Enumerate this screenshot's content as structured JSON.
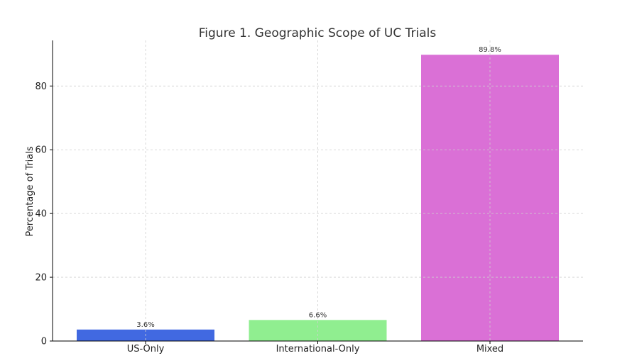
{
  "chart_data": {
    "type": "bar",
    "title": "Figure 1. Geographic Scope of UC Trials",
    "xlabel": "",
    "ylabel": "Percentage of Trials",
    "categories": [
      "US-Only",
      "International-Only",
      "Mixed"
    ],
    "values": [
      3.6,
      6.6,
      89.8
    ],
    "data_labels": [
      "3.6%",
      "6.6%",
      "89.8%"
    ],
    "colors": [
      "#4169e1",
      "#90ee90",
      "#da70d6"
    ],
    "ylim": [
      0,
      94.3
    ],
    "yticks": [
      0,
      20,
      40,
      60,
      80
    ],
    "grid": true
  }
}
